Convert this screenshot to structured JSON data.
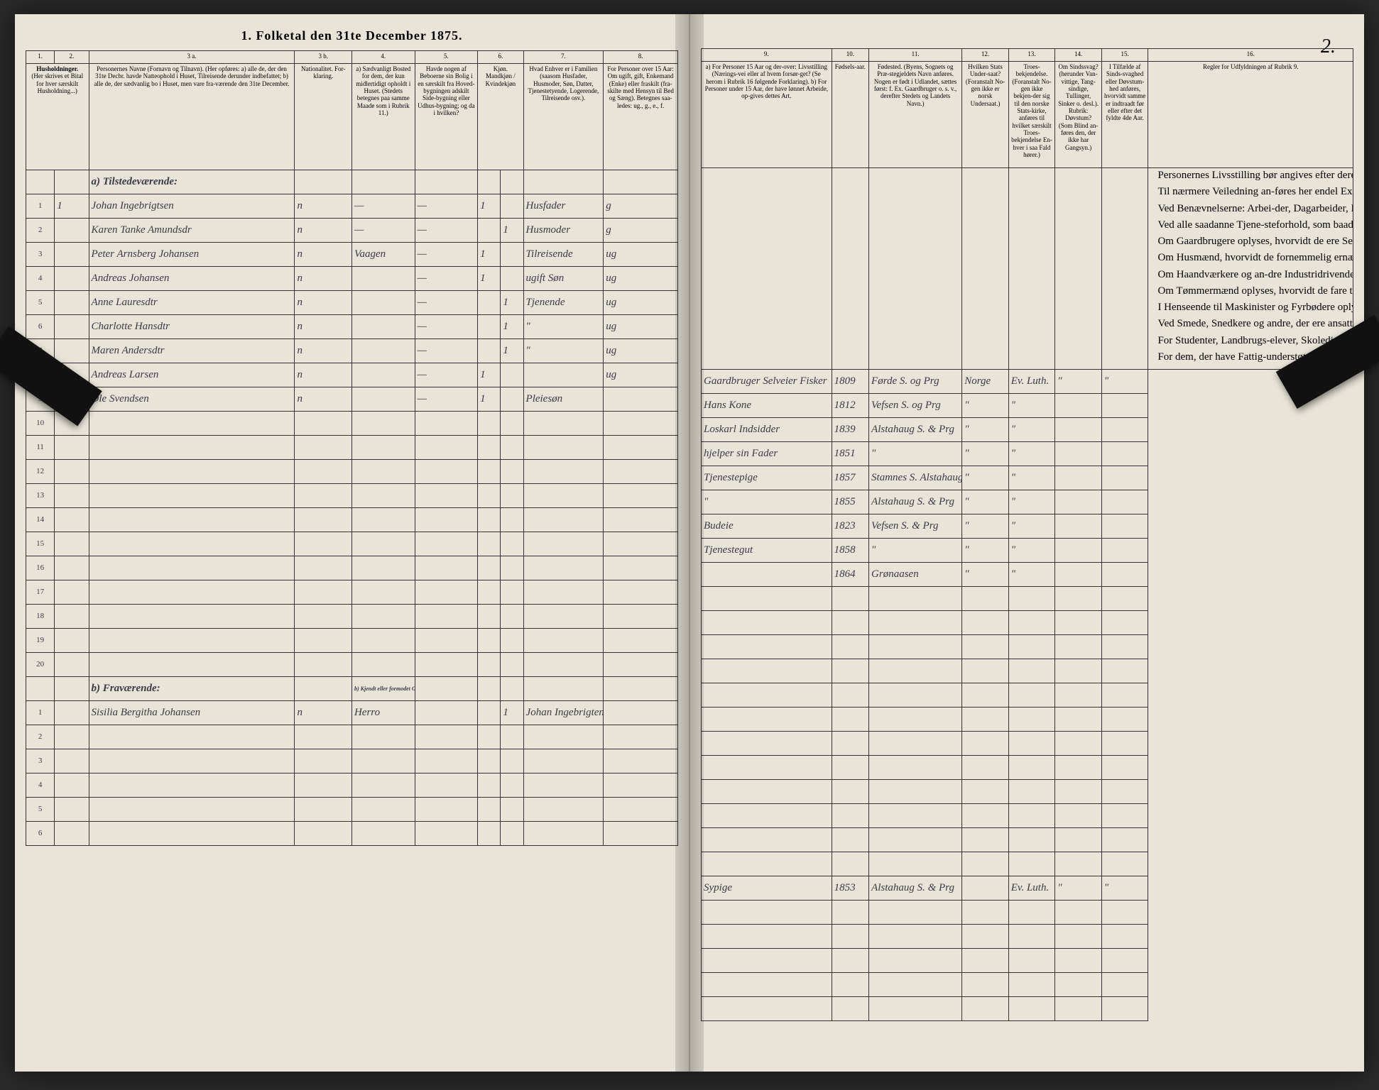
{
  "title": "1.  Folketal den 31te December 1875.",
  "page_number_right": "2.",
  "columns_left": {
    "nums": [
      "1.",
      "2.",
      "3 a.",
      "3 b.",
      "4.",
      "5.",
      "6.",
      "7.",
      "8."
    ],
    "heads": [
      "Husholdninger.",
      "(Her skrives et Bital for hver særskilt Husholdning...)",
      "Personernes Navne (Fornavn og Tilnavn).\n(Her opføres:\na) alle de, der den 31te Decbr. havde Natteophold i Huset, Tilreisende derunder indbefattet;\nb) alle de, der sædvanlig bo i Huset, men vare fra-værende den 31te December.",
      "Nationalitet. For-klaring.",
      "a) Sædvanligt Bosted for dem, der kun midlertidigt opholdt i Huset. (Stedets betegnes paa samme Maade som i Rubrik 11.)",
      "Havde nogen af Beboerne sin Bolig i en særskilt fra Hoved-bygningen adskilt Side-bygning eller Udhus-bygning; og da i hvilken?",
      "Kjøn. Mandkjøn / Kvindekjøn",
      "Hvad Enhver er i Familien (saasom Husfader, Husmoder, Søn, Datter, Tjenestetyende, Logerende, Tilreisende osv.).",
      "For Personer over 15 Aar: Om ugift, gift, Enkemand (Enke) eller fraskilt (fra-skilte med Hensyn til Bed og Sæng). Betegnes saa-ledes: ug., g., e., f."
    ]
  },
  "columns_right": {
    "nums": [
      "9.",
      "10.",
      "11.",
      "12.",
      "13.",
      "14.",
      "15.",
      "16."
    ],
    "heads": [
      "a) For Personer 15 Aar og der-over: Livsstilling (Nærings-vei eller af hvem forsør-get? (Se herom i Rubrik 16 følgende Forklaring).\nb) For Personer under 15 Aar, der have lønnet Arbeide, op-gives dettes Art.",
      "Fødsels-aar.",
      "Fødested.\n(Byens, Sognets og Præ-stegjeldets Navn anføres. Nogen er født i Udlandet, sættes først: f. Ex. Gaardbruger o. s. v., derefter Stedets og Landets Navn.)",
      "Hvilken Stats Under-saat? (Foranstalt No-gen ikke er norsk Undersaat.)",
      "Troes-bekjendelse. (Foranstalt No-gen ikke bekjen-der sig til den norske Stats-kirke, anføres til hvilket særskilt Troes-bekjendelse En-hver i saa Fald hører.)",
      "Om Sindssvag? (herunder Van-vittige, Tang-sindige, Tullinger, Sinker o. desl.). Rubrik: Døvstum? (Som Blind an-føres den, der ikke har Gangsyn.)",
      "I Tilfælde af Sinds-svaghed eller Døvstum-hed anføres, hvorvidt samme er indtraadt før eller efter det fyldte 4de Aar.",
      "Regler for Udfyldningen af Rubrik 9."
    ]
  },
  "section_a": "a)  Tilstedeværende:",
  "section_b": "b)  Fraværende:",
  "section_b_head": "b) Kjendt eller formodet Opholdssted.",
  "rows_a": [
    {
      "n": "1",
      "hh": "1",
      "name": "Johan Ingebrigtsen",
      "nat": "n",
      "c4": "—",
      "c5": "—",
      "m": "1",
      "k": "",
      "fam": "Husfader",
      "civ": "g",
      "occ": "Gaardbruger Selveier Fisker",
      "yr": "1809",
      "born": "Førde S. og Prg",
      "stat": "Norge",
      "rel": "Ev. Luth.",
      "c14": "\"",
      "c15": "\""
    },
    {
      "n": "2",
      "hh": "",
      "name": "Karen Tanke Amundsdr",
      "nat": "n",
      "c4": "—",
      "c5": "—",
      "m": "",
      "k": "1",
      "fam": "Husmoder",
      "civ": "g",
      "occ": "Hans Kone",
      "yr": "1812",
      "born": "Vefsen S. og Prg",
      "stat": "\"",
      "rel": "\"",
      "c14": "",
      "c15": ""
    },
    {
      "n": "3",
      "hh": "",
      "name": "Peter Arnsberg Johansen",
      "nat": "n",
      "c4": "Vaagen",
      "c5": "—",
      "m": "1",
      "k": "",
      "fam": "Tilreisende",
      "civ": "ug",
      "occ": "Loskarl Indsidder",
      "yr": "1839",
      "born": "Alstahaug S. & Prg",
      "stat": "\"",
      "rel": "\"",
      "c14": "",
      "c15": ""
    },
    {
      "n": "4",
      "hh": "",
      "name": "Andreas Johansen",
      "nat": "n",
      "c4": "",
      "c5": "—",
      "m": "1",
      "k": "",
      "fam": "ugift Søn",
      "civ": "ug",
      "occ": "hjelper sin Fader",
      "yr": "1851",
      "born": "\"",
      "stat": "\"",
      "rel": "\"",
      "c14": "",
      "c15": ""
    },
    {
      "n": "5",
      "hh": "",
      "name": "Anne Lauresdtr",
      "nat": "n",
      "c4": "",
      "c5": "—",
      "m": "",
      "k": "1",
      "fam": "Tjenende",
      "civ": "ug",
      "occ": "Tjenestepige",
      "yr": "1857",
      "born": "Stamnes S. Alstahaug Prg",
      "stat": "\"",
      "rel": "\"",
      "c14": "",
      "c15": ""
    },
    {
      "n": "6",
      "hh": "",
      "name": "Charlotte Hansdtr",
      "nat": "n",
      "c4": "",
      "c5": "—",
      "m": "",
      "k": "1",
      "fam": "\"",
      "civ": "ug",
      "occ": "\"",
      "yr": "1855",
      "born": "Alstahaug S. & Prg",
      "stat": "\"",
      "rel": "\"",
      "c14": "",
      "c15": ""
    },
    {
      "n": "7",
      "hh": "",
      "name": "Maren Andersdtr",
      "nat": "n",
      "c4": "",
      "c5": "—",
      "m": "",
      "k": "1",
      "fam": "\"",
      "civ": "ug",
      "occ": "Budeie",
      "yr": "1823",
      "born": "Vefsen S. & Prg",
      "stat": "\"",
      "rel": "\"",
      "c14": "",
      "c15": ""
    },
    {
      "n": "8",
      "hh": "",
      "name": "Andreas Larsen",
      "nat": "n",
      "c4": "",
      "c5": "—",
      "m": "1",
      "k": "",
      "fam": "",
      "civ": "ug",
      "occ": "Tjenestegut",
      "yr": "1858",
      "born": "\"",
      "stat": "\"",
      "rel": "\"",
      "c14": "",
      "c15": ""
    },
    {
      "n": "9",
      "hh": "",
      "name": "Ole Svendsen",
      "nat": "n",
      "c4": "",
      "c5": "—",
      "m": "1",
      "k": "",
      "fam": "Pleiesøn",
      "civ": "",
      "occ": "",
      "yr": "1864",
      "born": "Grønaasen",
      "stat": "\"",
      "rel": "\"",
      "c14": "",
      "c15": ""
    }
  ],
  "rows_b": [
    {
      "n": "1",
      "name": "Sisilia Bergitha Johansen",
      "nat": "n",
      "c4": "Herro",
      "c5": "",
      "m": "",
      "k": "1",
      "fam": "Johan Ingebrigtens Datter",
      "civ": "",
      "occ": "Sypige",
      "yr": "1853",
      "born": "Alstahaug S. & Prg",
      "stat": "",
      "rel": "Ev. Luth.",
      "c14": "\"",
      "c15": "\""
    }
  ],
  "empty_a": [
    "10",
    "11",
    "12",
    "13",
    "14",
    "15",
    "16",
    "17",
    "18",
    "19",
    "20"
  ],
  "empty_b": [
    "2",
    "3",
    "4",
    "5",
    "6"
  ],
  "instructions": [
    "Personernes Livsstilling bør angives efter deres væ-sentlige Beskjæftigelse eller Næringsvei med Udelukkelse af Benævnelser, der kun be-tegne Beklædelse af Ombud, tagne Examina eller andre ydre Egenskaber. Forener Skatteyderen flere Beskjæf-tigelser, der kunne ansees som væsentlige, bør han opføres med dobbelt Livsstilling, idet hans vigtigste Erhvervskilde sættes først; f. Ex. Gaardbru-ger og Fisker; Skibsreder og Gaardbruger o. s. v. Forøv-rigt bør Stillingen opgives saa bestemt, specielt og nöiagtigt som muligt.",
    "Til nærmere Veiledning an-føres her endel Exempler:",
    "Ved Benævnelserne: Arbei-der, Dagarbeider, Inderst, Løskarl, Strandsidder eller lign. bør tilføies det Slags Arbeide, hvormed vedkom-mende hovedsagelig er syssel-sat; f. Ex. Jordbrug, Skov-arbeide, Veiarbeide, et eller Slags Fabrik- eller Haand-værksarbeide o. s. v.",
    "Ved alle saadanne Tjene-steforhold, som baade kan være privat og offentlig, bør Forholdets Art opgives, t. Ex. ved Regnskabsfører, om de ere ansatte ved en privat eller ved en offentlig Indretning og da hvilken; lignende ved Fuld-mægtig, Kontorist, Opsyns-mand, Forvalter, Assistent, Lærer, Ingeniør og andre.",
    "Om Gaardbrugere oplyses, hvorvidt de ere Selveiere, Lei-lændinge eller Forpagtere.",
    "Om Husmænd, hvorvidt de fornemmelig ernære sig ved Jordbrug eller ved andet Ar-beide, og da af hvad Slags.",
    "Om Haandværkere og an-dre Industridrivende, hvad Slags Industri de drive, samt hvorvidt de drive den selv-stændigt eller ere i andres Arbeide.",
    "Om Tømmermænd oplyses, hvorvidt de fare tilsøs som Skibstømmermænd, eller ar-beide paa Skibsværfter, eller beskjæftige ved andet Tøm-mermandsarbeide.",
    "I Henseende til Maskinister og Fyrbødere oplyses, om de fare tilsøs eller ved hvilket Slags Fabrikdrift eller anden Virksomhedsgren de ere an-satte.",
    "Ved Smede, Snedkere og andre, der ere ansatte ved Fa-briker og Brug, bør dettes Navn opgives.",
    "For Studenter, Landbrugs-elever, Skoledisciple og an-dre, der ikke forsørge sig selv, bør Forsørgerens Livs-stilling opgives, forsaavidt de ikke bo sammen med denne.",
    "For dem, der have Fattig-understøttelse, opgives, hvor-vidt de ere helt eller delvis understøttede og i sidste Til-fælde, hvad de forøvrigt er-nære sig ved."
  ],
  "colors": {
    "paper": "#e8e4d8",
    "ink": "#333333",
    "script": "#3a3a45",
    "clip": "#111111"
  }
}
